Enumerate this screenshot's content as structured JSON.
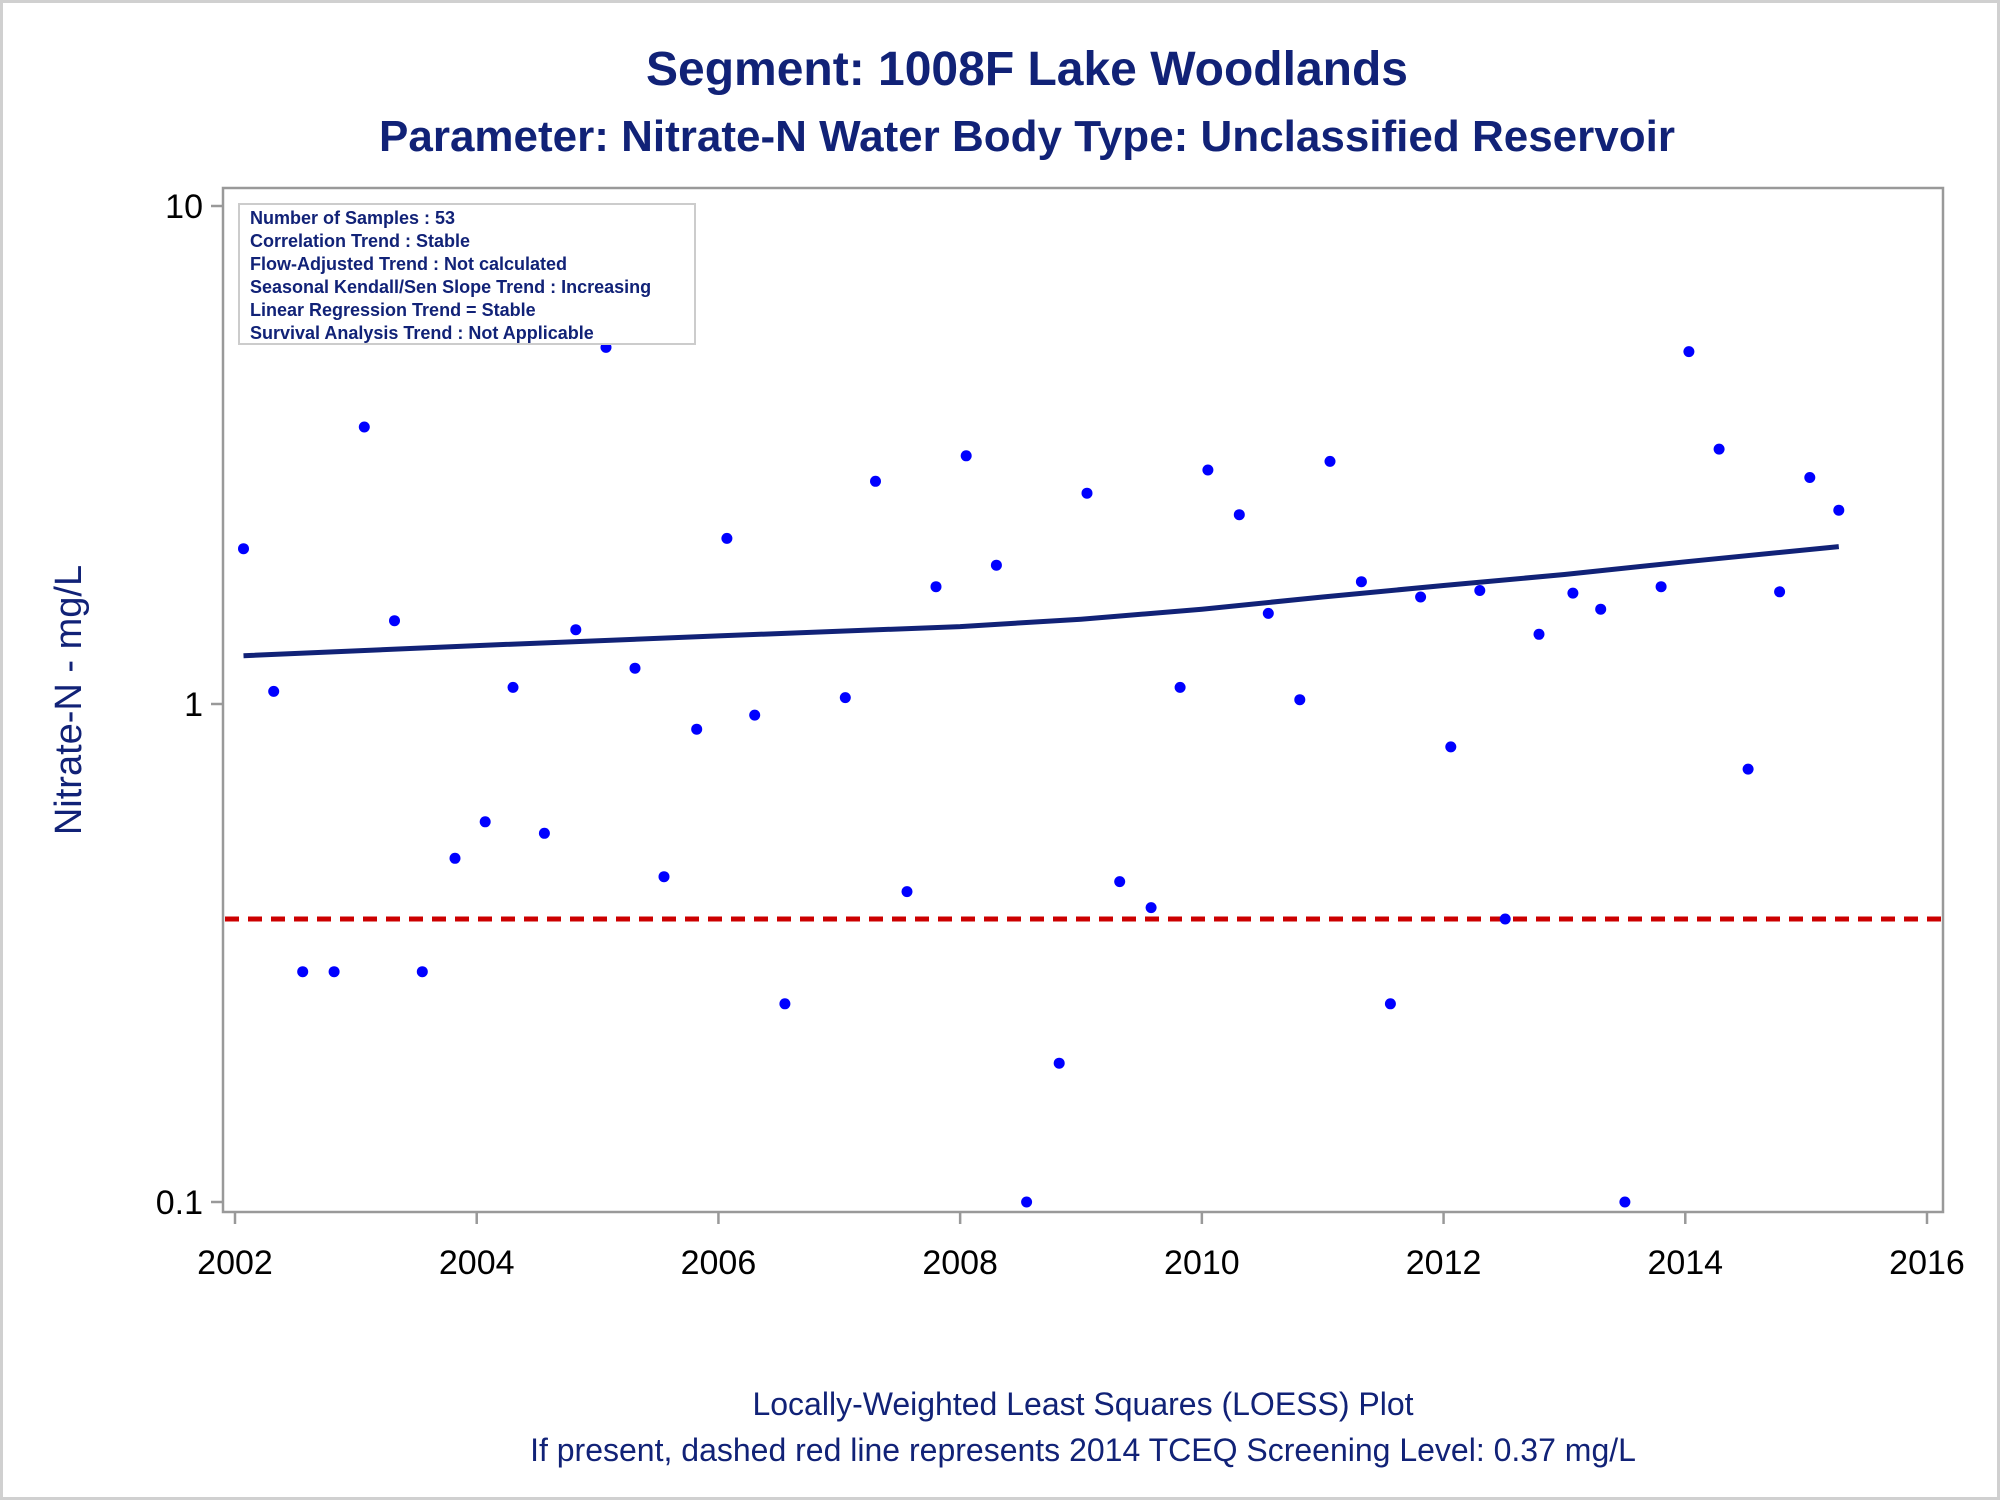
{
  "chart_data": {
    "type": "scatter",
    "title": "Segment: 1008F  Lake Woodlands",
    "subtitle": "Parameter: Nitrate-N   Water Body Type: Unclassified Reservoir",
    "xlabel": "",
    "ylabel": "Nitrate-N - mg/L",
    "xlim": [
      2002,
      2016
    ],
    "ylim": [
      0.1,
      10
    ],
    "yscale": "log",
    "xticks": [
      "2002",
      "2004",
      "2006",
      "2008",
      "2010",
      "2012",
      "2014",
      "2016"
    ],
    "yticks": [
      "0.1",
      "1",
      "10"
    ],
    "grid": false,
    "info_box": [
      "Number of Samples : 53",
      "Correlation Trend : Stable",
      "Flow-Adjusted Trend : Not calculated",
      "Seasonal Kendall/Sen Slope Trend : Increasing",
      "Linear Regression Trend = Stable",
      "Survival Analysis Trend : Not Applicable"
    ],
    "footnotes": [
      "Locally-Weighted Least Squares (LOESS) Plot",
      "If present, dashed red line represents 2014 TCEQ Screening Level: 0.37 mg/L"
    ],
    "screening_level": 0.37,
    "colors": {
      "points": "#0000ff",
      "loess": "#112277",
      "screening": "#cc0000",
      "text": "#112277",
      "axis": "#999999"
    },
    "series": [
      {
        "kind": "samples",
        "points": [
          [
            2002.07,
            2.05
          ],
          [
            2002.32,
            1.06
          ],
          [
            2002.56,
            0.29
          ],
          [
            2002.82,
            0.29
          ],
          [
            2003.07,
            3.6
          ],
          [
            2003.32,
            1.47
          ],
          [
            2003.55,
            0.29
          ],
          [
            2003.82,
            0.49
          ],
          [
            2004.07,
            0.58
          ],
          [
            2004.3,
            1.08
          ],
          [
            2004.56,
            0.55
          ],
          [
            2004.82,
            1.41
          ],
          [
            2005.07,
            5.2
          ],
          [
            2005.31,
            1.18
          ],
          [
            2005.55,
            0.45
          ],
          [
            2005.82,
            0.89
          ],
          [
            2006.07,
            2.15
          ],
          [
            2006.3,
            0.95
          ],
          [
            2006.55,
            0.25
          ],
          [
            2007.05,
            1.03
          ],
          [
            2007.3,
            2.8
          ],
          [
            2007.56,
            0.42
          ],
          [
            2007.8,
            1.72
          ],
          [
            2008.05,
            3.15
          ],
          [
            2008.3,
            1.9
          ],
          [
            2008.55,
            0.1
          ],
          [
            2008.82,
            0.19
          ],
          [
            2009.05,
            2.65
          ],
          [
            2009.32,
            0.44
          ],
          [
            2009.58,
            0.39
          ],
          [
            2009.82,
            1.08
          ],
          [
            2010.05,
            2.95
          ],
          [
            2010.31,
            2.4
          ],
          [
            2010.55,
            1.52
          ],
          [
            2010.81,
            1.02
          ],
          [
            2011.06,
            3.07
          ],
          [
            2011.32,
            1.76
          ],
          [
            2011.56,
            0.25
          ],
          [
            2011.81,
            1.64
          ],
          [
            2012.06,
            0.82
          ],
          [
            2012.3,
            1.69
          ],
          [
            2012.51,
            0.37
          ],
          [
            2012.79,
            1.38
          ],
          [
            2013.07,
            1.67
          ],
          [
            2013.3,
            1.55
          ],
          [
            2013.5,
            0.1
          ],
          [
            2013.8,
            1.72
          ],
          [
            2014.03,
            5.1
          ],
          [
            2014.28,
            3.25
          ],
          [
            2014.52,
            0.74
          ],
          [
            2014.78,
            1.68
          ],
          [
            2015.03,
            2.85
          ],
          [
            2015.27,
            2.45
          ]
        ]
      },
      {
        "kind": "loess",
        "points": [
          [
            2002.07,
            1.25
          ],
          [
            2004.0,
            1.31
          ],
          [
            2006.0,
            1.37
          ],
          [
            2008.0,
            1.43
          ],
          [
            2009.0,
            1.48
          ],
          [
            2010.0,
            1.55
          ],
          [
            2011.0,
            1.64
          ],
          [
            2012.0,
            1.73
          ],
          [
            2013.0,
            1.82
          ],
          [
            2014.0,
            1.93
          ],
          [
            2015.27,
            2.07
          ]
        ]
      }
    ]
  }
}
